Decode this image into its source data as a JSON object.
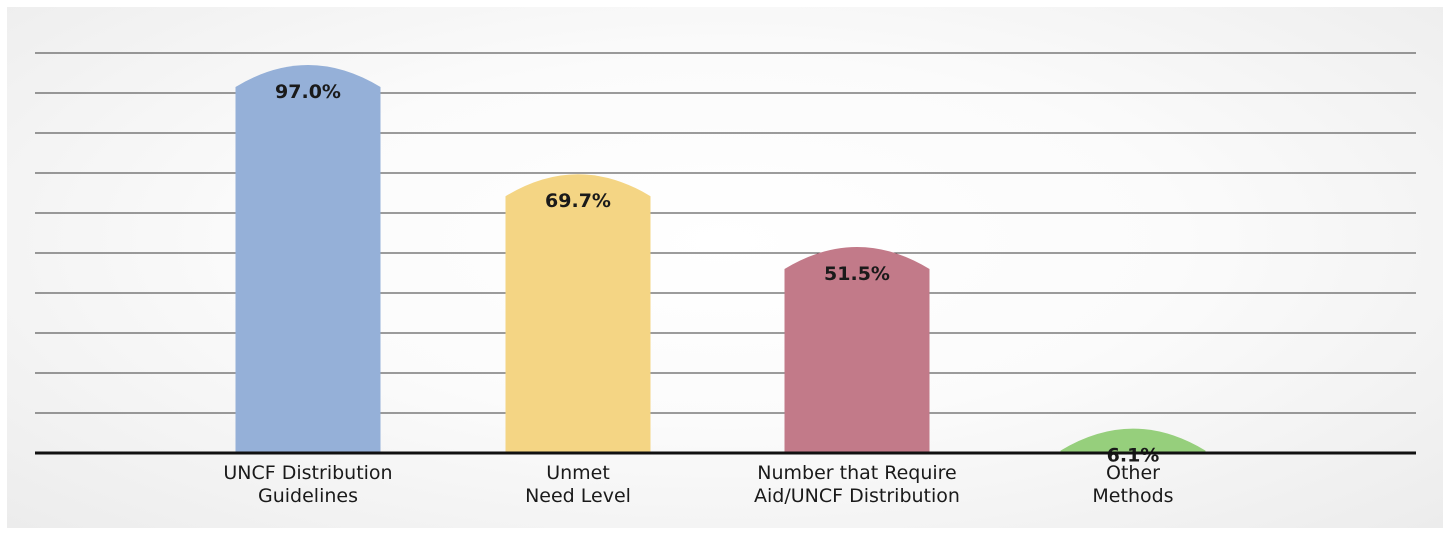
{
  "chart_data": {
    "type": "bar",
    "title": "",
    "xlabel": "",
    "ylabel": "",
    "ylim": [
      0,
      100
    ],
    "grid": true,
    "categories": [
      [
        "UNCF Distribution",
        "Guidelines"
      ],
      [
        "Unmet",
        "Need Level"
      ],
      [
        "Number that Require",
        "Aid/UNCF Distribution"
      ],
      [
        "Other",
        "Methods"
      ]
    ],
    "values": [
      97.0,
      69.7,
      51.5,
      6.1
    ],
    "value_labels": [
      "97.0%",
      "69.7%",
      "51.5%",
      "6.1%"
    ],
    "colors": [
      "#95b0d8",
      "#f4d584",
      "#c27a89",
      "#96cf7c"
    ]
  }
}
